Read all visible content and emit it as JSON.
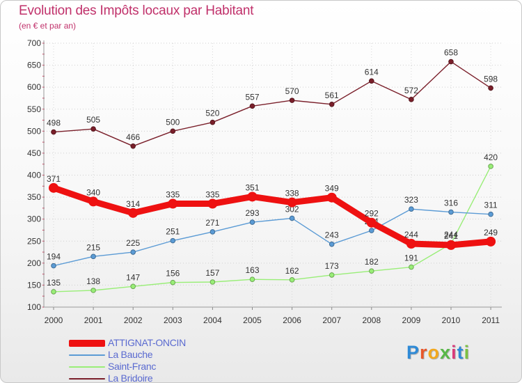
{
  "header": {
    "title": "Evolution des Impôts locaux par Habitant",
    "subtitle": "(en € et par an)"
  },
  "logo": {
    "text": "Proxiti",
    "letters": [
      "P",
      "r",
      "o",
      "x",
      "i",
      "t",
      "i"
    ],
    "colors": [
      "#2f8ad6",
      "#e8572a",
      "#f2a81e",
      "#58b848",
      "#d83a7a",
      "#2f8ad6",
      "#7cc142"
    ]
  },
  "chart_data": {
    "type": "line",
    "title": "Evolution des Impôts locaux par Habitant",
    "subtitle": "(en € et par an)",
    "xlabel": "",
    "ylabel": "",
    "x": [
      "2000",
      "2001",
      "2002",
      "2003",
      "2004",
      "2005",
      "2006",
      "2007",
      "2008",
      "2009",
      "2010",
      "2011"
    ],
    "ylim": [
      100,
      700
    ],
    "yticks": [
      100,
      150,
      200,
      250,
      300,
      350,
      400,
      450,
      500,
      550,
      600,
      650,
      700
    ],
    "grid": true,
    "legend": "bottom-left",
    "series": [
      {
        "name": "ATTIGNAT-ONCIN",
        "color": "#ee1111",
        "values": [
          371,
          340,
          314,
          335,
          335,
          351,
          338,
          349,
          292,
          244,
          241,
          249
        ]
      },
      {
        "name": "La Bauche",
        "color": "#5b9bd5",
        "values": [
          194,
          215,
          225,
          251,
          271,
          293,
          302,
          243,
          274,
          323,
          316,
          311
        ]
      },
      {
        "name": "Saint-Franc",
        "color": "#99ee77",
        "values": [
          135,
          138,
          147,
          156,
          157,
          163,
          162,
          173,
          182,
          191,
          244,
          420
        ]
      },
      {
        "name": "La Bridoire",
        "color": "#7a1f2a",
        "values": [
          498,
          505,
          466,
          500,
          520,
          557,
          570,
          561,
          614,
          572,
          658,
          598
        ]
      }
    ]
  }
}
